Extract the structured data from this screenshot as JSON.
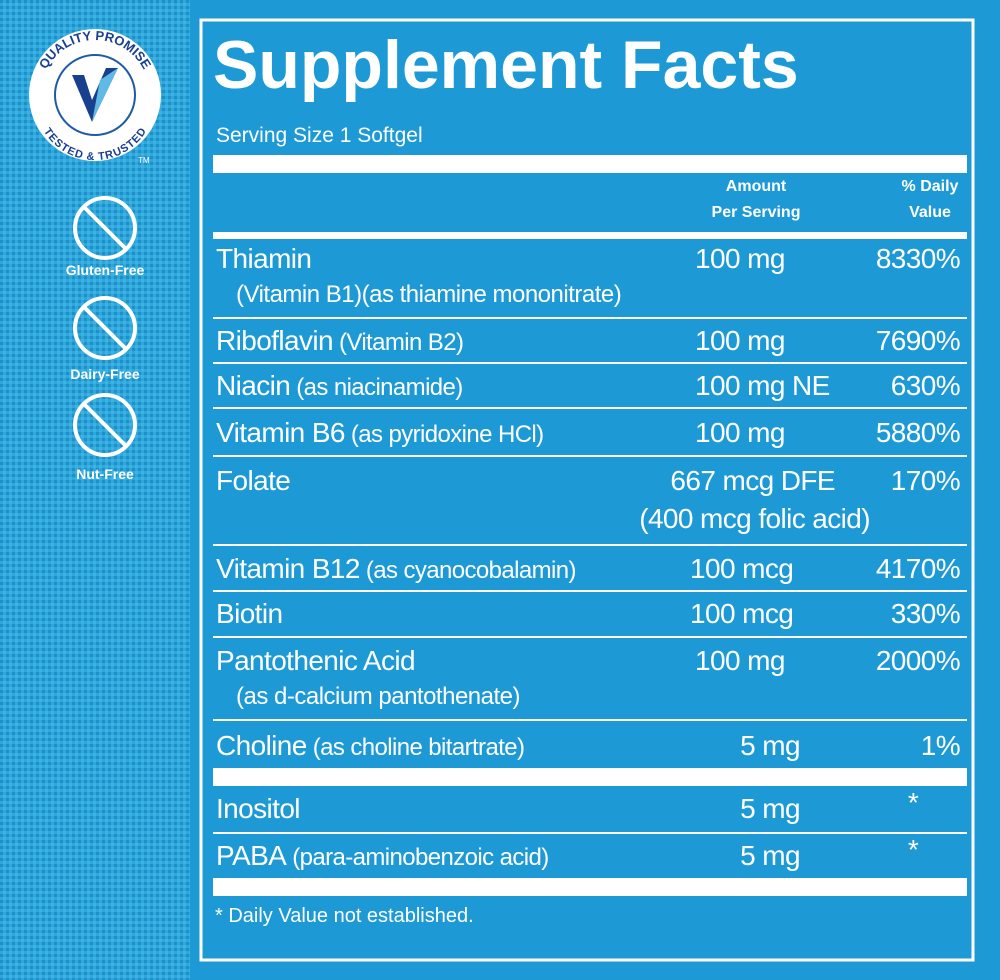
{
  "badges": {
    "seal_top": "QUALITY PROMISE",
    "seal_bottom": "TESTED & TRUSTED",
    "seal_tm": "TM",
    "items": [
      "Gluten-Free",
      "Dairy-Free",
      "Nut-Free"
    ]
  },
  "facts": {
    "title": "Supplement Facts",
    "serving_size": "Serving Size 1 Softgel",
    "headers": {
      "amount": [
        "Amount",
        "Per Serving"
      ],
      "daily_value": [
        "% Daily",
        "Value"
      ]
    },
    "rows": [
      {
        "name": "Thiamin",
        "detail": "(Vitamin B1)(as thiamine mononitrate)",
        "amount": "100 mg",
        "daily_value": "8330%"
      },
      {
        "name": "Riboflavin",
        "detail": "(Vitamin B2)",
        "amount": "100 mg",
        "daily_value": "7690%"
      },
      {
        "name": "Niacin",
        "detail": "(as niacinamide)",
        "amount": "100 mg NE",
        "daily_value": "630%"
      },
      {
        "name": "Vitamin B6",
        "detail": "(as pyridoxine HCl)",
        "amount": "100 mg",
        "daily_value": "5880%"
      },
      {
        "name": "Folate",
        "amount": "667 mcg DFE",
        "amount_detail": "(400 mcg folic acid)",
        "daily_value": "170%"
      },
      {
        "name": "Vitamin B12",
        "detail": "(as cyanocobalamin)",
        "amount": "100 mcg",
        "daily_value": "4170%"
      },
      {
        "name": "Biotin",
        "amount": "100 mcg",
        "daily_value": "330%"
      },
      {
        "name": "Pantothenic Acid",
        "detail": "(as d-calcium pantothenate)",
        "amount": "100 mg",
        "daily_value": "2000%"
      },
      {
        "name": "Choline",
        "detail": "(as choline bitartrate)",
        "amount": "5 mg",
        "daily_value": "1%"
      },
      {
        "name": "Inositol",
        "amount": "5 mg",
        "daily_value": "*"
      },
      {
        "name": "PABA",
        "detail": "(para-aminobenzoic acid)",
        "amount": "5 mg",
        "daily_value": "*"
      }
    ],
    "footnote": "* Daily Value not established."
  }
}
